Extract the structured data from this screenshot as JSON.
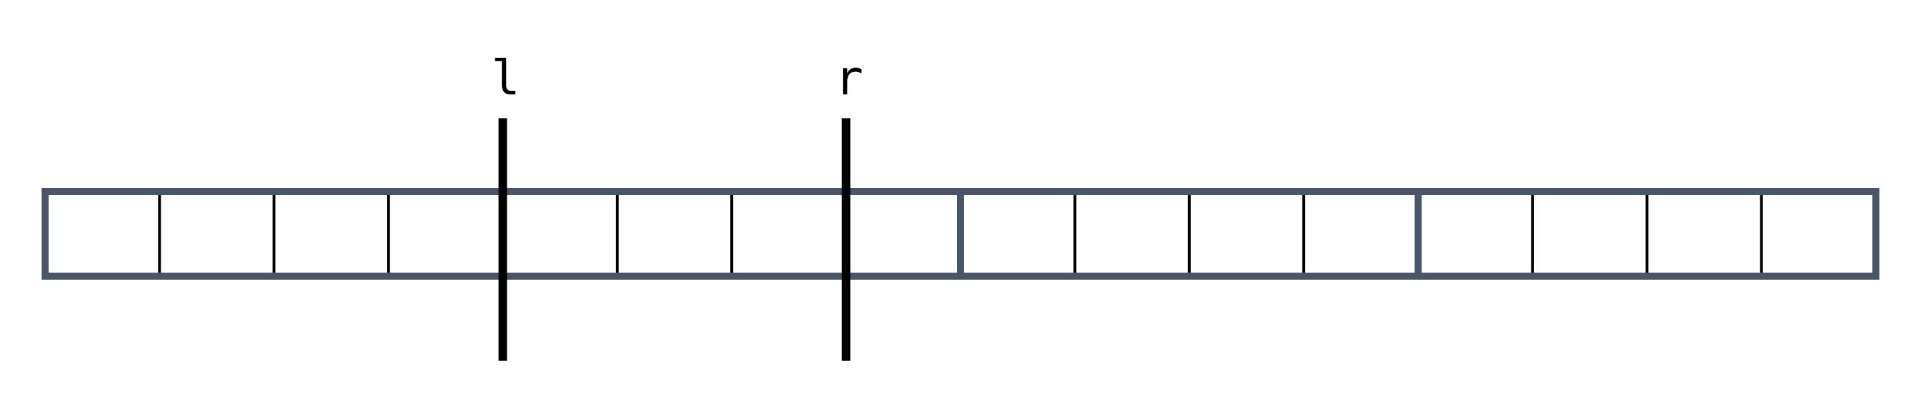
{
  "diagram": {
    "cell_count": 16,
    "group_size": 4,
    "pointers": [
      {
        "label": "l",
        "boundary": 4
      },
      {
        "label": "r",
        "boundary": 7
      }
    ]
  },
  "colors": {
    "outer_border": "#4a5568",
    "inner_divider": "#000000",
    "pointer_line": "#000000",
    "cell_fill": "#ffffff",
    "background": "#ffffff"
  }
}
